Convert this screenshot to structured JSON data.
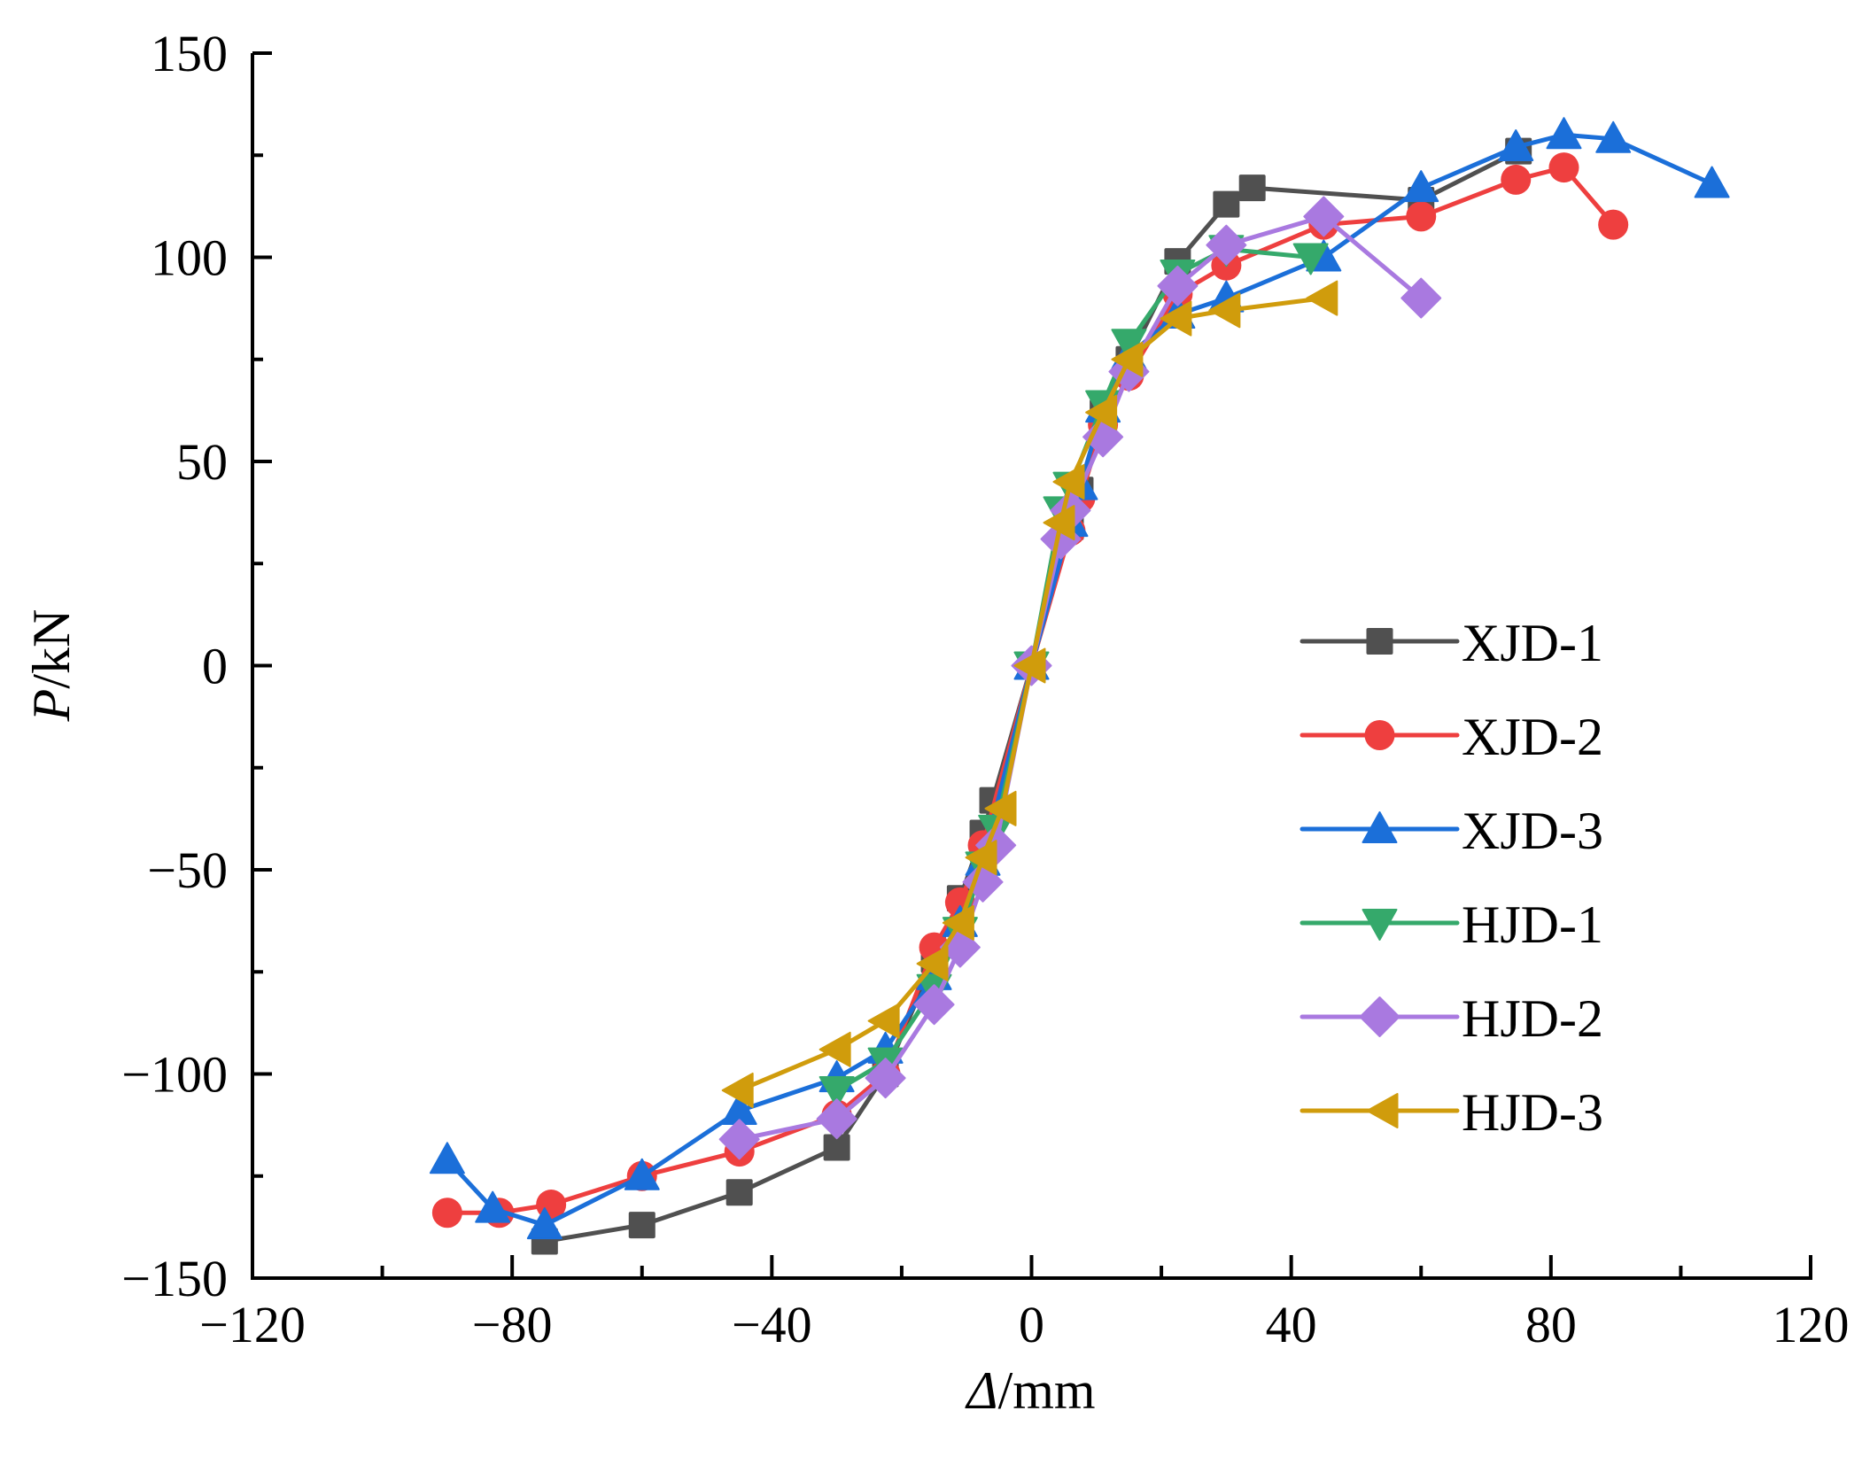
{
  "chart_data": {
    "type": "line",
    "title": "",
    "xlabel_italic": "Δ",
    "xlabel_rest": "/mm",
    "ylabel_italic": "P",
    "ylabel_rest": "/kN",
    "xlim": [
      -120,
      120
    ],
    "ylim": [
      -150,
      150
    ],
    "xticks": [
      -120,
      -80,
      -40,
      0,
      40,
      80,
      120
    ],
    "xtick_labels": [
      "−120",
      "−80",
      "−40",
      "0",
      "40",
      "80",
      "120"
    ],
    "xminor": [
      -100,
      -60,
      -20,
      20,
      60,
      100
    ],
    "yticks": [
      -150,
      -100,
      -50,
      0,
      50,
      100,
      150
    ],
    "ytick_labels": [
      "−150",
      "−100",
      "−50",
      "0",
      "50",
      "100",
      "150"
    ],
    "yminor": [
      -125,
      -75,
      -25,
      25,
      75,
      125
    ],
    "grid": false,
    "legend_position": "right",
    "series": [
      {
        "name": "XJD-1",
        "marker": "square",
        "color": "#505050",
        "points": [
          [
            -75,
            -141
          ],
          [
            -60,
            -137
          ],
          [
            -45,
            -129
          ],
          [
            -30,
            -118
          ],
          [
            -22.5,
            -100
          ],
          [
            -15,
            -72
          ],
          [
            -11,
            -57
          ],
          [
            -7.5,
            -41
          ],
          [
            -6,
            -33
          ],
          [
            0,
            0
          ],
          [
            6,
            34
          ],
          [
            7.5,
            43
          ],
          [
            11,
            62
          ],
          [
            15,
            75
          ],
          [
            22.5,
            99
          ],
          [
            30,
            113
          ],
          [
            34,
            117
          ],
          [
            60,
            114
          ],
          [
            75,
            126
          ]
        ]
      },
      {
        "name": "XJD-2",
        "marker": "circle",
        "color": "#ee3f3f",
        "points": [
          [
            -90,
            -134
          ],
          [
            -82,
            -134
          ],
          [
            -74,
            -132
          ],
          [
            -60,
            -125
          ],
          [
            -45,
            -119
          ],
          [
            -30,
            -110
          ],
          [
            -22.5,
            -100
          ],
          [
            -15,
            -69
          ],
          [
            -11,
            -58
          ],
          [
            -7.5,
            -44
          ],
          [
            0,
            0
          ],
          [
            6,
            33
          ],
          [
            7.5,
            41
          ],
          [
            11,
            59
          ],
          [
            15,
            71
          ],
          [
            22.5,
            91
          ],
          [
            30,
            98
          ],
          [
            45,
            108
          ],
          [
            60,
            110
          ],
          [
            74.6,
            119
          ],
          [
            82,
            122
          ],
          [
            89.6,
            108
          ]
        ]
      },
      {
        "name": "XJD-3",
        "marker": "triangle-up",
        "color": "#1b6fd9",
        "points": [
          [
            -90,
            -121
          ],
          [
            -83,
            -133
          ],
          [
            -75,
            -137
          ],
          [
            -60,
            -125
          ],
          [
            -45,
            -109
          ],
          [
            -30,
            -101
          ],
          [
            -22.5,
            -94
          ],
          [
            -15,
            -76
          ],
          [
            -11,
            -63
          ],
          [
            -7.5,
            -48
          ],
          [
            0,
            0
          ],
          [
            6,
            35
          ],
          [
            7.5,
            44
          ],
          [
            11,
            63
          ],
          [
            15,
            76
          ],
          [
            22.5,
            86
          ],
          [
            30,
            90
          ],
          [
            45,
            100
          ],
          [
            60,
            117
          ],
          [
            74.6,
            127
          ],
          [
            82,
            130
          ],
          [
            89.6,
            129
          ],
          [
            104.8,
            118
          ]
        ]
      },
      {
        "name": "HJD-1",
        "marker": "triangle-down",
        "color": "#35a96b",
        "points": [
          [
            -30,
            -104
          ],
          [
            -22.5,
            -97
          ],
          [
            -15,
            -79
          ],
          [
            -11,
            -65
          ],
          [
            -7.5,
            -49
          ],
          [
            -5.5,
            -40
          ],
          [
            0,
            0
          ],
          [
            4.5,
            38
          ],
          [
            6,
            44
          ],
          [
            11,
            64
          ],
          [
            15,
            79
          ],
          [
            22.5,
            96
          ],
          [
            30,
            102
          ],
          [
            43,
            100
          ]
        ]
      },
      {
        "name": "HJD-2",
        "marker": "diamond",
        "color": "#a979e0",
        "points": [
          [
            -45,
            -116
          ],
          [
            -30,
            -111
          ],
          [
            -22.5,
            -101
          ],
          [
            -15,
            -83
          ],
          [
            -11,
            -69
          ],
          [
            -7.5,
            -53
          ],
          [
            -5.5,
            -44
          ],
          [
            0,
            0
          ],
          [
            4.5,
            31
          ],
          [
            6,
            38
          ],
          [
            11,
            56
          ],
          [
            15,
            72
          ],
          [
            22.5,
            93
          ],
          [
            30,
            103
          ],
          [
            45,
            110
          ],
          [
            60,
            90
          ]
        ]
      },
      {
        "name": "HJD-3",
        "marker": "triangle-left",
        "color": "#d09c0c",
        "points": [
          [
            -45,
            -104
          ],
          [
            -30,
            -94
          ],
          [
            -22.5,
            -87
          ],
          [
            -15,
            -73
          ],
          [
            -11,
            -63
          ],
          [
            -7.5,
            -47
          ],
          [
            -4.5,
            -35
          ],
          [
            0,
            0
          ],
          [
            4.5,
            35
          ],
          [
            6,
            45
          ],
          [
            11,
            62
          ],
          [
            15,
            75
          ],
          [
            22.5,
            85
          ],
          [
            30,
            87
          ],
          [
            45,
            90
          ]
        ]
      }
    ]
  }
}
